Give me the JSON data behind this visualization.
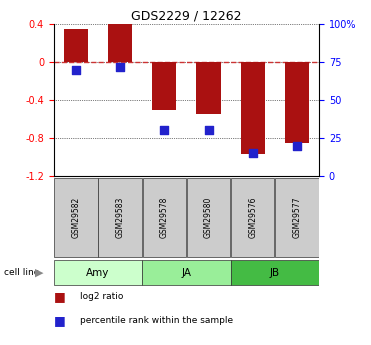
{
  "title": "GDS2229 / 12262",
  "samples": [
    "GSM29582",
    "GSM29583",
    "GSM29578",
    "GSM29580",
    "GSM29576",
    "GSM29577"
  ],
  "log2_ratio": [
    0.35,
    0.4,
    -0.5,
    -0.55,
    -0.97,
    -0.85
  ],
  "percentile_rank": [
    70,
    72,
    30,
    30,
    15,
    20
  ],
  "cell_lines": [
    {
      "label": "Amy",
      "color": "#ccffcc",
      "span": [
        0,
        2
      ]
    },
    {
      "label": "JA",
      "color": "#99ee99",
      "span": [
        2,
        4
      ]
    },
    {
      "label": "JB",
      "color": "#44bb44",
      "span": [
        4,
        6
      ]
    }
  ],
  "left_ylim": [
    -1.2,
    0.4
  ],
  "right_ylim": [
    0,
    100
  ],
  "left_yticks": [
    -1.2,
    -0.8,
    -0.4,
    0.0,
    0.4
  ],
  "right_yticks": [
    0,
    25,
    50,
    75,
    100
  ],
  "right_yticklabels": [
    "0",
    "25",
    "50",
    "75",
    "100%"
  ],
  "bar_color": "#aa1111",
  "dot_color": "#2222cc",
  "zero_line_color": "#cc3333",
  "bar_width": 0.55,
  "dot_size": 30,
  "legend_items": [
    "log2 ratio",
    "percentile rank within the sample"
  ]
}
